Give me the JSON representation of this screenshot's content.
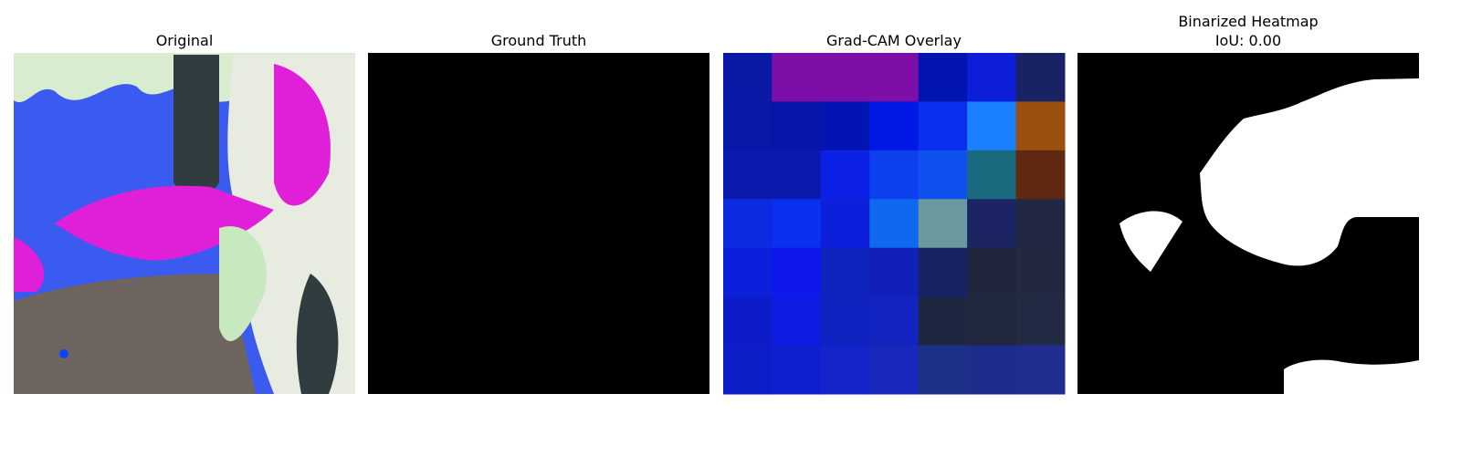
{
  "panels": [
    {
      "title": "Original"
    },
    {
      "title": "Ground Truth"
    },
    {
      "title": "Grad-CAM Overlay"
    },
    {
      "title": "Binarized Heatmap",
      "subtitle": "IoU: 0.00"
    }
  ]
}
